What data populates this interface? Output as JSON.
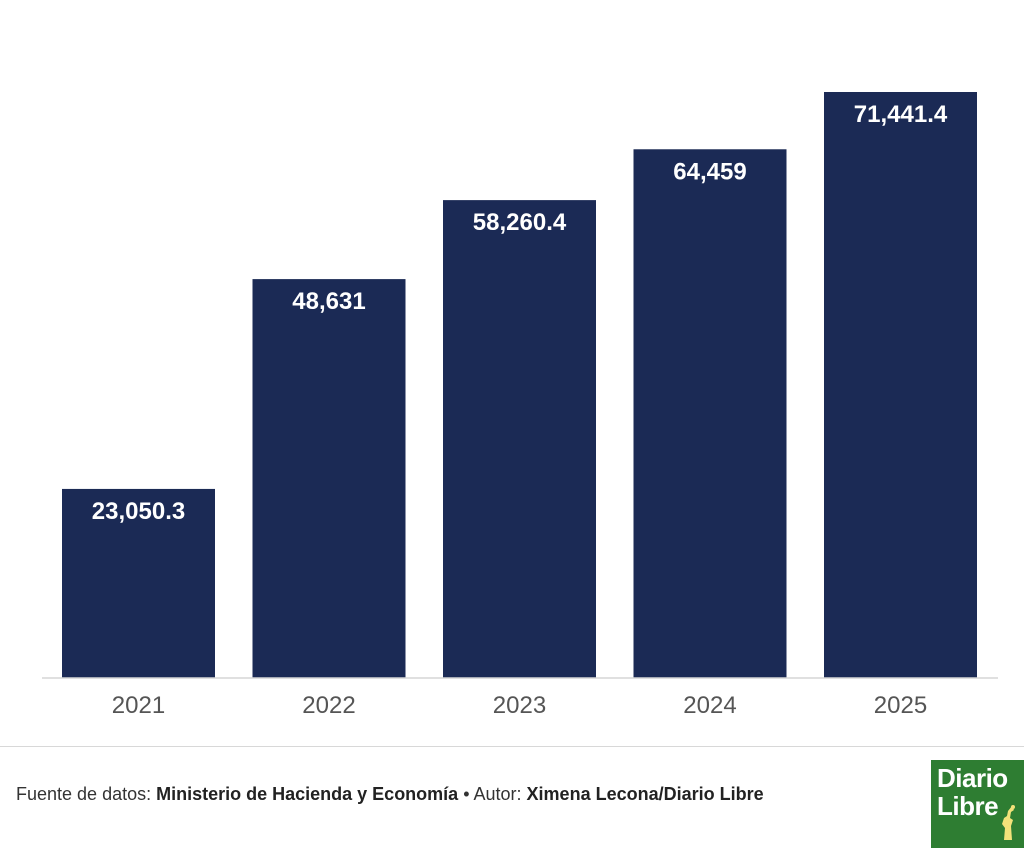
{
  "chart_data": {
    "type": "bar",
    "categories": [
      "2021",
      "2022",
      "2023",
      "2024",
      "2025"
    ],
    "values": [
      23050.3,
      48631,
      58260.4,
      64459,
      71441.4
    ],
    "value_labels": [
      "23,050.3",
      "48,631",
      "58,260.4",
      "64,459",
      "71,441.4"
    ],
    "ylim": [
      0,
      71441.4
    ],
    "grid": false,
    "bar_color": "#1b2a55"
  },
  "footer": {
    "source_prefix": "Fuente de datos: ",
    "source": "Ministerio de Hacienda y Economía",
    "separator": " • ",
    "author_prefix": "Autor: ",
    "author": "Ximena Lecona/Diario Libre"
  },
  "logo": {
    "line1": "Diario",
    "line2": "Libre",
    "color": "#2e7d32"
  }
}
